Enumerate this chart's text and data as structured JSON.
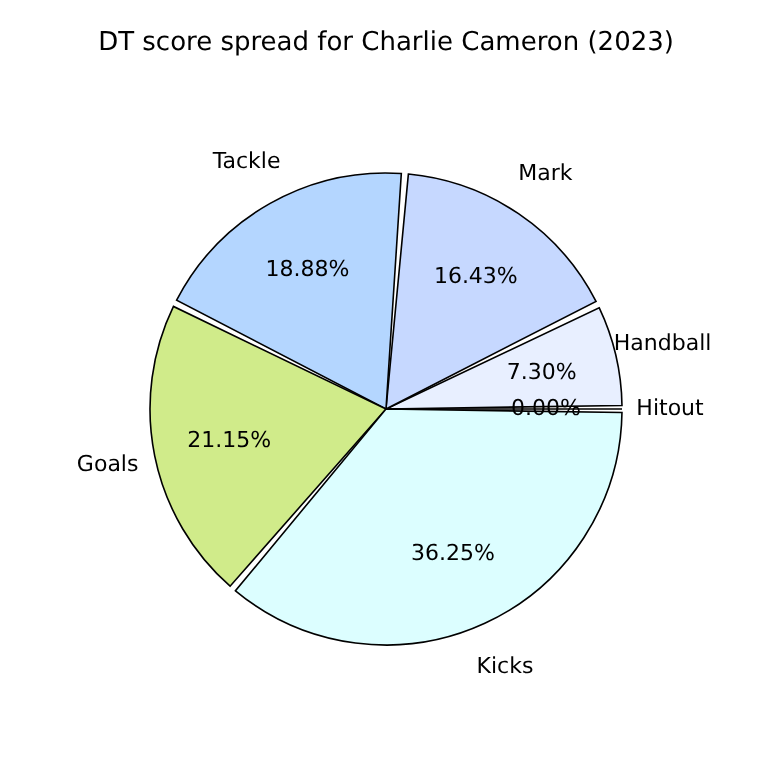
{
  "chart_data": {
    "type": "pie",
    "title": "DT score spread for Charlie Cameron (2023)",
    "categories": [
      "Handball",
      "Mark",
      "Tackle",
      "Goals",
      "Kicks",
      "Hitout"
    ],
    "values": [
      7.3,
      16.43,
      18.88,
      21.15,
      36.25,
      0.0
    ],
    "colors": [
      "#e8efff",
      "#c6d8ff",
      "#b4d6ff",
      "#d0eb8a",
      "#dcfeff",
      "#ffffff"
    ],
    "value_labels": [
      "7.30%",
      "16.43%",
      "18.88%",
      "21.15%",
      "36.25%",
      "0.00%"
    ]
  }
}
